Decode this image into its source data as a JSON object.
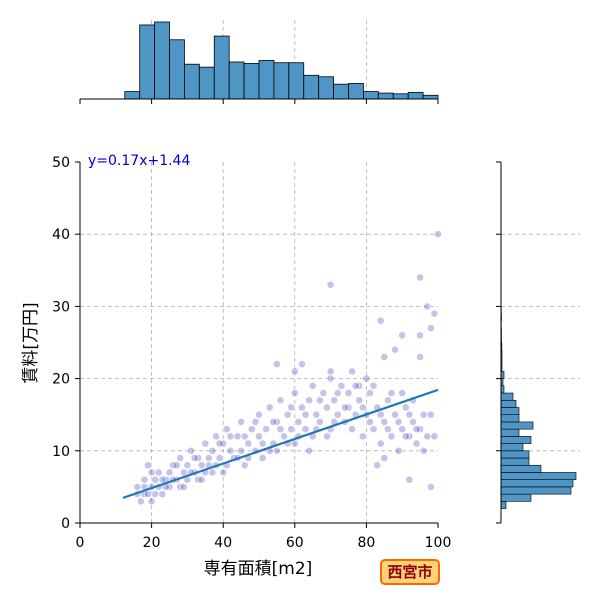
{
  "badge": "西宮市",
  "chart_data": {
    "type": "scatter",
    "title": "",
    "xlabel": "専有面積[m2]",
    "ylabel": "賃料[万円]",
    "xlim": [
      0,
      100
    ],
    "ylim": [
      0,
      50
    ],
    "x_ticks": [
      "0",
      "20",
      "40",
      "60",
      "80",
      "100"
    ],
    "y_ticks": [
      "0",
      "10",
      "20",
      "30",
      "40",
      "50"
    ],
    "grid": true,
    "regression": {
      "label": "y=0.17x+1.44",
      "slope": 0.17,
      "intercept": 1.44,
      "x_range": [
        12,
        100
      ]
    },
    "point_color": "#2a2ab8",
    "line_color": "#1f77b4",
    "hist_color": "#4f95c5",
    "points": [
      [
        100,
        40
      ],
      [
        70,
        33
      ],
      [
        95,
        34
      ],
      [
        97,
        30
      ],
      [
        99,
        29
      ],
      [
        98,
        27
      ],
      [
        84,
        28
      ],
      [
        95,
        26
      ],
      [
        90,
        26
      ],
      [
        55,
        22
      ],
      [
        60,
        21
      ],
      [
        62,
        22
      ],
      [
        70,
        21
      ],
      [
        85,
        23
      ],
      [
        88,
        24
      ],
      [
        95,
        23
      ],
      [
        80,
        20
      ],
      [
        78,
        19
      ],
      [
        75,
        18
      ],
      [
        90,
        18
      ],
      [
        92,
        15
      ],
      [
        98,
        15
      ],
      [
        99,
        12
      ],
      [
        96,
        10
      ],
      [
        85,
        9
      ],
      [
        83,
        8
      ],
      [
        98,
        5
      ],
      [
        92,
        6
      ],
      [
        16,
        4
      ],
      [
        16,
        5
      ],
      [
        17,
        3
      ],
      [
        18,
        4
      ],
      [
        18,
        6
      ],
      [
        19,
        8
      ],
      [
        20,
        5
      ],
      [
        20,
        3
      ],
      [
        21,
        6
      ],
      [
        22,
        5
      ],
      [
        22,
        7
      ],
      [
        23,
        4
      ],
      [
        24,
        6
      ],
      [
        25,
        7
      ],
      [
        25,
        5
      ],
      [
        26,
        8
      ],
      [
        27,
        6
      ],
      [
        28,
        5
      ],
      [
        28,
        9
      ],
      [
        29,
        7
      ],
      [
        30,
        6
      ],
      [
        30,
        8
      ],
      [
        31,
        10
      ],
      [
        32,
        7
      ],
      [
        33,
        6
      ],
      [
        33,
        9
      ],
      [
        34,
        8
      ],
      [
        35,
        11
      ],
      [
        35,
        7
      ],
      [
        36,
        9
      ],
      [
        37,
        10
      ],
      [
        38,
        8
      ],
      [
        38,
        12
      ],
      [
        39,
        9
      ],
      [
        40,
        7
      ],
      [
        40,
        11
      ],
      [
        41,
        13
      ],
      [
        42,
        10
      ],
      [
        43,
        9
      ],
      [
        44,
        12
      ],
      [
        45,
        14
      ],
      [
        45,
        10
      ],
      [
        46,
        8
      ],
      [
        47,
        11
      ],
      [
        48,
        13
      ],
      [
        49,
        10
      ],
      [
        50,
        12
      ],
      [
        50,
        15
      ],
      [
        51,
        9
      ],
      [
        52,
        13
      ],
      [
        53,
        16
      ],
      [
        54,
        11
      ],
      [
        55,
        14
      ],
      [
        55,
        10
      ],
      [
        56,
        17
      ],
      [
        57,
        12
      ],
      [
        58,
        15
      ],
      [
        59,
        13
      ],
      [
        60,
        18
      ],
      [
        60,
        11
      ],
      [
        61,
        14
      ],
      [
        62,
        16
      ],
      [
        63,
        13
      ],
      [
        64,
        17
      ],
      [
        65,
        12
      ],
      [
        65,
        19
      ],
      [
        66,
        15
      ],
      [
        67,
        14
      ],
      [
        68,
        18
      ],
      [
        69,
        16
      ],
      [
        70,
        13
      ],
      [
        70,
        20
      ],
      [
        71,
        17
      ],
      [
        72,
        15
      ],
      [
        73,
        19
      ],
      [
        74,
        14
      ],
      [
        75,
        16
      ],
      [
        76,
        21
      ],
      [
        77,
        15
      ],
      [
        78,
        17
      ],
      [
        79,
        12
      ],
      [
        80,
        15
      ],
      [
        81,
        18
      ],
      [
        82,
        13
      ],
      [
        83,
        16
      ],
      [
        84,
        11
      ],
      [
        85,
        14
      ],
      [
        86,
        17
      ],
      [
        87,
        12
      ],
      [
        88,
        15
      ],
      [
        89,
        10
      ],
      [
        90,
        13
      ],
      [
        91,
        16
      ],
      [
        92,
        12
      ],
      [
        93,
        14
      ],
      [
        94,
        11
      ],
      [
        95,
        13
      ],
      [
        18,
        5
      ],
      [
        19,
        4
      ],
      [
        20,
        7
      ],
      [
        21,
        4
      ],
      [
        23,
        6
      ],
      [
        24,
        5
      ],
      [
        26,
        6
      ],
      [
        27,
        8
      ],
      [
        29,
        5
      ],
      [
        31,
        7
      ],
      [
        32,
        9
      ],
      [
        34,
        6
      ],
      [
        36,
        8
      ],
      [
        37,
        7
      ],
      [
        39,
        11
      ],
      [
        41,
        8
      ],
      [
        42,
        12
      ],
      [
        44,
        9
      ],
      [
        46,
        12
      ],
      [
        47,
        9
      ],
      [
        49,
        14
      ],
      [
        51,
        11
      ],
      [
        53,
        10
      ],
      [
        54,
        14
      ],
      [
        56,
        13
      ],
      [
        58,
        11
      ],
      [
        59,
        16
      ],
      [
        61,
        12
      ],
      [
        63,
        15
      ],
      [
        64,
        10
      ],
      [
        66,
        13
      ],
      [
        67,
        17
      ],
      [
        69,
        12
      ],
      [
        71,
        14
      ],
      [
        72,
        18
      ],
      [
        74,
        16
      ],
      [
        76,
        13
      ],
      [
        77,
        19
      ],
      [
        79,
        16
      ],
      [
        81,
        14
      ],
      [
        82,
        19
      ],
      [
        84,
        15
      ],
      [
        86,
        13
      ],
      [
        87,
        18
      ],
      [
        89,
        14
      ],
      [
        91,
        12
      ],
      [
        93,
        17
      ],
      [
        94,
        13
      ],
      [
        96,
        15
      ],
      [
        97,
        12
      ]
    ],
    "hist_x": {
      "bin_edges": [
        0,
        4.17,
        8.33,
        12.5,
        16.67,
        20.83,
        25,
        29.17,
        33.33,
        37.5,
        41.67,
        45.83,
        50,
        54.17,
        58.33,
        62.5,
        66.67,
        70.83,
        75,
        79.17,
        83.33,
        87.5,
        91.67,
        95.83,
        100
      ],
      "counts": [
        0,
        0,
        0,
        10,
        100,
        104,
        80,
        47,
        43,
        85,
        50,
        48,
        52,
        49,
        49,
        32,
        30,
        20,
        21,
        10,
        8,
        7,
        9,
        5
      ],
      "max": 104
    },
    "hist_y": {
      "bin_edges": [
        2,
        3,
        4,
        5,
        6,
        7,
        8,
        9,
        10,
        11,
        12,
        13,
        14,
        15,
        16,
        17,
        18,
        19,
        20,
        21,
        22,
        23,
        24,
        25,
        26,
        27,
        28,
        29,
        30
      ],
      "counts": [
        5,
        30,
        70,
        72,
        75,
        40,
        28,
        28,
        22,
        30,
        18,
        32,
        18,
        18,
        15,
        12,
        3,
        2,
        3,
        1,
        1,
        1,
        0.8,
        0.5,
        0.5,
        0.3,
        0.5,
        0.3
      ],
      "max": 75
    }
  }
}
